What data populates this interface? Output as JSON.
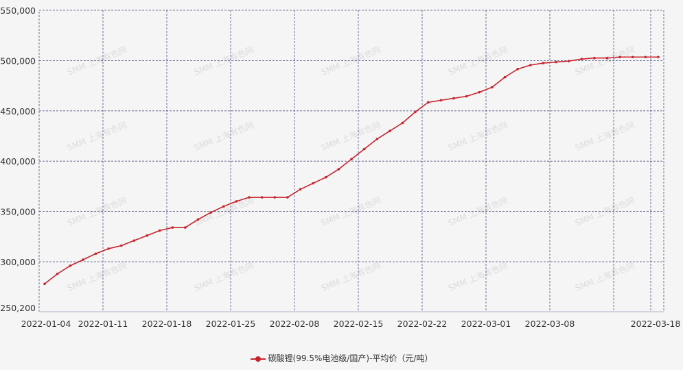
{
  "chart_data": {
    "type": "line",
    "title": "",
    "xlabel": "",
    "ylabel": "",
    "ylim": [
      250200,
      550000
    ],
    "y_ticks": [
      "550,000",
      "500,000",
      "450,000",
      "400,000",
      "350,000",
      "300,000",
      "250,200"
    ],
    "y_tick_values": [
      550000,
      500000,
      450000,
      400000,
      350000,
      300000,
      250200
    ],
    "x_ticks": [
      "2022-01-04",
      "2022-01-11",
      "2022-01-18",
      "2022-01-25",
      "2022-02-08",
      "2022-02-15",
      "2022-02-22",
      "2022-03-01",
      "2022-03-08",
      "2022-03-18"
    ],
    "grid": true,
    "legend_position": "bottom",
    "watermark": "SMM 上海有色网",
    "colors": {
      "line": "#c8232c",
      "grid": "#4a5080",
      "background": "#f5f5f5"
    },
    "series": [
      {
        "name": "碳酸锂(99.5%电池级/国产)-平均价（元/吨）",
        "x": [
          "2022-01-04",
          "2022-01-05",
          "2022-01-06",
          "2022-01-07",
          "2022-01-10",
          "2022-01-11",
          "2022-01-12",
          "2022-01-13",
          "2022-01-14",
          "2022-01-17",
          "2022-01-18",
          "2022-01-19",
          "2022-01-20",
          "2022-01-21",
          "2022-01-24",
          "2022-01-25",
          "2022-01-26",
          "2022-01-27",
          "2022-01-28",
          "2022-02-07",
          "2022-02-08",
          "2022-02-09",
          "2022-02-10",
          "2022-02-11",
          "2022-02-14",
          "2022-02-15",
          "2022-02-16",
          "2022-02-17",
          "2022-02-18",
          "2022-02-21",
          "2022-02-22",
          "2022-02-23",
          "2022-02-24",
          "2022-02-25",
          "2022-02-28",
          "2022-03-01",
          "2022-03-02",
          "2022-03-03",
          "2022-03-04",
          "2022-03-07",
          "2022-03-08",
          "2022-03-09",
          "2022-03-10",
          "2022-03-11",
          "2022-03-14",
          "2022-03-15",
          "2022-03-16",
          "2022-03-17",
          "2022-03-18"
        ],
        "values": [
          278000,
          288000,
          296000,
          302000,
          308000,
          313000,
          316000,
          321000,
          326000,
          331000,
          334000,
          334000,
          342000,
          349000,
          355000,
          360000,
          364000,
          364000,
          364000,
          364000,
          372000,
          378000,
          384000,
          392000,
          402000,
          412000,
          422000,
          430000,
          438000,
          449000,
          458500,
          460500,
          462500,
          464500,
          468500,
          473500,
          483500,
          491500,
          495500,
          497500,
          498500,
          499500,
          501500,
          502500,
          502500,
          503500,
          503500,
          503500,
          503500
        ]
      }
    ]
  }
}
